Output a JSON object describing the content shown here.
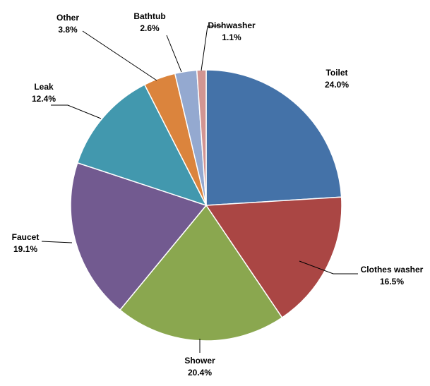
{
  "chart_data": {
    "type": "pie",
    "title": "",
    "start_angle_deg": 0,
    "direction": "clockwise",
    "legend": "none",
    "slices": [
      {
        "label": "Toilet",
        "value": 24.0,
        "value_label": "24.0%",
        "color": "#4472a8"
      },
      {
        "label": "Clothes washer",
        "value": 16.5,
        "value_label": "16.5%",
        "color": "#aa4644"
      },
      {
        "label": "Shower",
        "value": 20.4,
        "value_label": "20.4%",
        "color": "#8aa74f"
      },
      {
        "label": "Faucet",
        "value": 19.1,
        "value_label": "19.1%",
        "color": "#725a90"
      },
      {
        "label": "Leak",
        "value": 12.4,
        "value_label": "12.4%",
        "color": "#4298ae"
      },
      {
        "label": "Other",
        "value": 3.8,
        "value_label": "3.8%",
        "color": "#db843d"
      },
      {
        "label": "Bathtub",
        "value": 2.6,
        "value_label": "2.6%",
        "color": "#94a9d0"
      },
      {
        "label": "Dishwasher",
        "value": 1.1,
        "value_label": "1.1%",
        "color": "#d29592"
      }
    ]
  }
}
